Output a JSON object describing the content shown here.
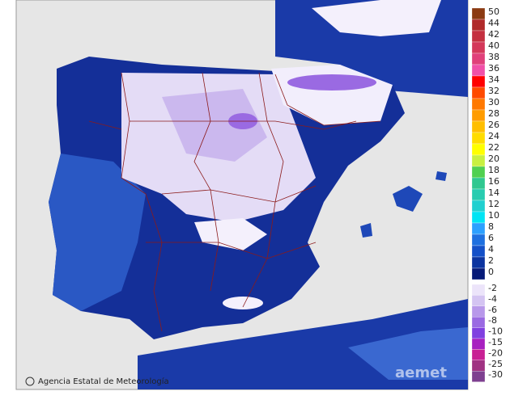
{
  "credit": "Agencia Estatal de Meteorología",
  "watermark": "aemet",
  "legend": {
    "warm": [
      {
        "label": 50,
        "color": "#8b3a12"
      },
      {
        "label": 44,
        "color": "#b02a2a"
      },
      {
        "label": 42,
        "color": "#c43040"
      },
      {
        "label": 40,
        "color": "#d4385a"
      },
      {
        "label": 38,
        "color": "#e0407a"
      },
      {
        "label": 36,
        "color": "#f050a8"
      },
      {
        "label": 34,
        "color": "#ff0000"
      },
      {
        "label": 32,
        "color": "#ff4a00"
      },
      {
        "label": 30,
        "color": "#ff7800"
      },
      {
        "label": 28,
        "color": "#ff9c00"
      },
      {
        "label": 26,
        "color": "#ffbe00"
      },
      {
        "label": 24,
        "color": "#ffdc00"
      },
      {
        "label": 22,
        "color": "#ffff00"
      },
      {
        "label": 20,
        "color": "#c8f040"
      },
      {
        "label": 18,
        "color": "#50d050"
      },
      {
        "label": 16,
        "color": "#30c890"
      },
      {
        "label": 14,
        "color": "#28ccb0"
      },
      {
        "label": 12,
        "color": "#20d0d0"
      },
      {
        "label": 10,
        "color": "#00e4f4"
      },
      {
        "label": 8,
        "color": "#2ca0ff"
      },
      {
        "label": 6,
        "color": "#1e70e0"
      },
      {
        "label": 4,
        "color": "#1450c8"
      },
      {
        "label": 2,
        "color": "#0c34a0"
      },
      {
        "label": 0,
        "color": "#061a78"
      }
    ],
    "cold": [
      {
        "label": -2,
        "color": "#ece4fa"
      },
      {
        "label": -4,
        "color": "#d4c4f2"
      },
      {
        "label": -6,
        "color": "#b898ea"
      },
      {
        "label": -8,
        "color": "#9a6ae2"
      },
      {
        "label": -10,
        "color": "#8040e0"
      },
      {
        "label": -15,
        "color": "#a820c0"
      },
      {
        "label": -20,
        "color": "#c82094"
      },
      {
        "label": -25,
        "color": "#a03282"
      },
      {
        "label": -30,
        "color": "#7e4090"
      }
    ]
  }
}
